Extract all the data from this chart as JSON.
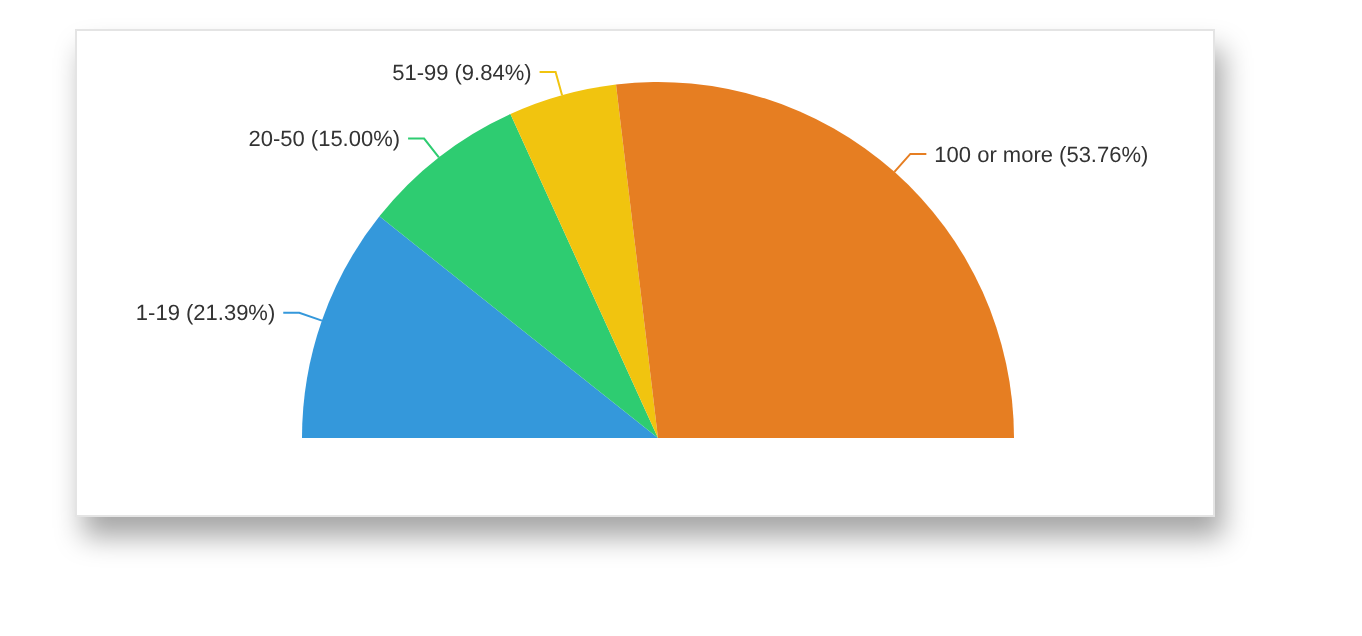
{
  "chart_data": {
    "type": "pie",
    "categories": [
      "1-19",
      "20-50",
      "51-99",
      "100 or more"
    ],
    "values": [
      21.39,
      15.0,
      9.84,
      53.76
    ],
    "value_labels": [
      "(21.39%)",
      "(15.00%)",
      "(9.84%)",
      "(53.76%)"
    ],
    "colors": [
      "#3498db",
      "#2ecc71",
      "#f1c40f",
      "#e67e22"
    ]
  }
}
